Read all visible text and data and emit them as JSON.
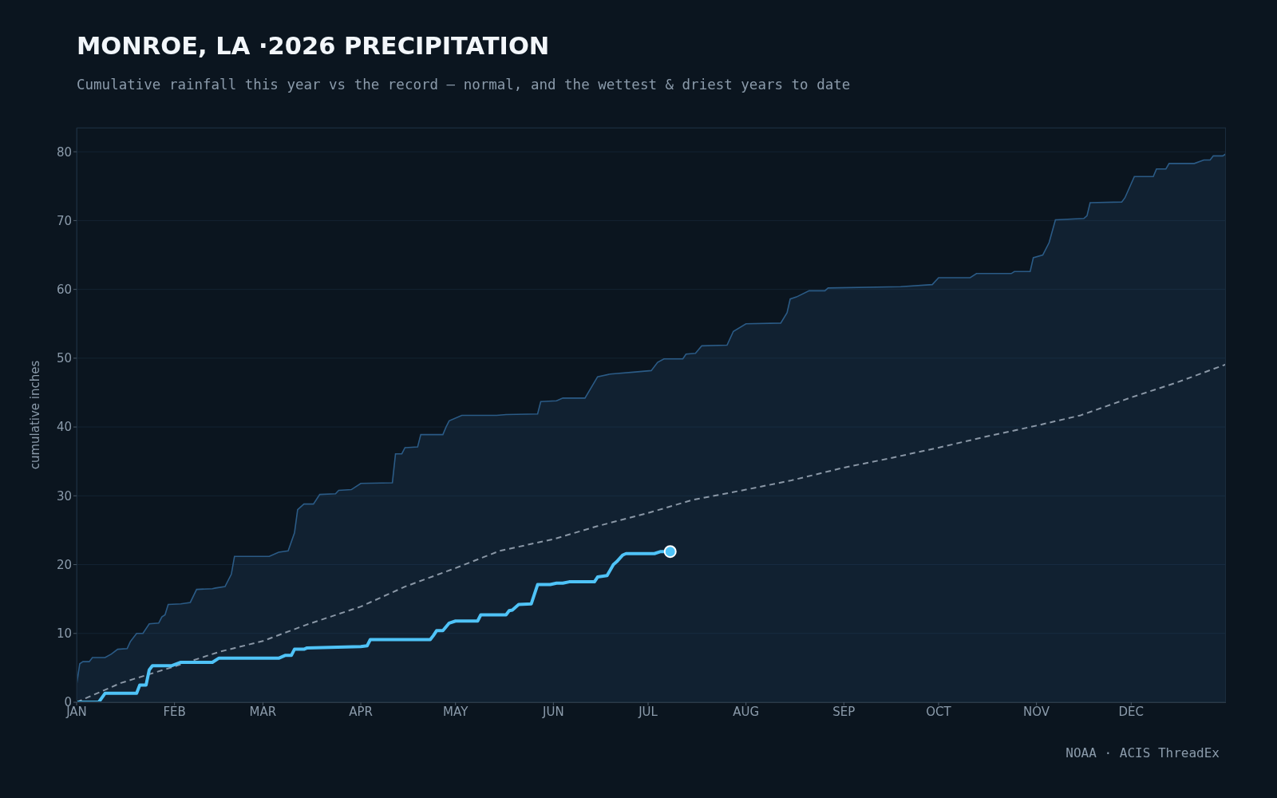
{
  "chart_data": {
    "type": "line",
    "title": "MONROE, LA ·2026 PRECIPITATION",
    "subtitle": "Cumulative rainfall this year vs the record — normal, and the wettest & driest years to date",
    "ylabel": "cumulative inches",
    "annotations": [
      "NOAA · ACIS ThreadEx"
    ],
    "xlim": [
      "--01-01",
      "--12-31"
    ],
    "xticks": [
      {
        "value": "--01-01",
        "label": "JAN"
      },
      {
        "value": "--02-01",
        "label": "FEB"
      },
      {
        "value": "--03-01",
        "label": "MAR"
      },
      {
        "value": "--04-01",
        "label": "APR"
      },
      {
        "value": "--05-01",
        "label": "MAY"
      },
      {
        "value": "--06-01",
        "label": "JUN"
      },
      {
        "value": "--07-01",
        "label": "JUL"
      },
      {
        "value": "--08-01",
        "label": "AUG"
      },
      {
        "value": "--09-01",
        "label": "SEP"
      },
      {
        "value": "--10-01",
        "label": "OCT"
      },
      {
        "value": "--11-01",
        "label": "NOV"
      },
      {
        "value": "--12-01",
        "label": "DEC"
      }
    ],
    "ylim": [
      0,
      83.5
    ],
    "yticks": [
      0,
      10,
      20,
      30,
      40,
      50,
      60,
      70,
      80
    ],
    "grid": "y",
    "series": [
      {
        "type": "area",
        "color": "#2b5b86",
        "x": [
          "--01-01",
          "--01-02",
          "--01-03",
          "--01-05",
          "--01-06",
          "--01-10",
          "--01-12",
          "--01-14",
          "--01-17",
          "--01-18",
          "--01-20",
          "--01-22",
          "--01-24",
          "--01-27",
          "--01-28",
          "--01-29",
          "--01-30",
          "--02-03",
          "--02-06",
          "--02-08",
          "--02-13",
          "--02-14",
          "--02-17",
          "--02-19",
          "--02-20",
          "--03-03",
          "--03-06",
          "--03-09",
          "--03-11",
          "--03-12",
          "--03-14",
          "--03-17",
          "--03-19",
          "--03-24",
          "--03-25",
          "--03-29",
          "--04-01",
          "--04-11",
          "--04-12",
          "--04-14",
          "--04-15",
          "--04-19",
          "--04-20",
          "--04-27",
          "--04-28",
          "--04-29",
          "--05-03",
          "--05-14",
          "--05-17",
          "--05-27",
          "--05-28",
          "--06-02",
          "--06-04",
          "--06-11",
          "--06-15",
          "--06-19",
          "--06-27",
          "--07-02",
          "--07-04",
          "--07-06",
          "--07-12",
          "--07-13",
          "--07-16",
          "--07-18",
          "--07-26",
          "--07-28",
          "--08-01",
          "--08-12",
          "--08-14",
          "--08-15",
          "--08-17",
          "--08-21",
          "--08-26",
          "--08-27",
          "--09-19",
          "--09-29",
          "--10-01",
          "--10-11",
          "--10-13",
          "--10-24",
          "--10-25",
          "--10-30",
          "--10-31",
          "--11-03",
          "--11-05",
          "--11-07",
          "--11-16",
          "--11-17",
          "--11-18",
          "--11-28",
          "--11-29",
          "--12-02",
          "--12-08",
          "--12-09",
          "--12-12",
          "--12-13",
          "--12-21",
          "--12-24",
          "--12-26",
          "--12-27",
          "--12-30",
          "--12-31"
        ],
        "values": [
          2.6,
          5.6,
          5.9,
          5.9,
          6.5,
          6.5,
          7.0,
          7.7,
          7.8,
          8.8,
          10.0,
          10.0,
          11.4,
          11.5,
          12.4,
          12.7,
          14.2,
          14.3,
          14.5,
          16.4,
          16.5,
          16.6,
          16.8,
          18.6,
          21.2,
          21.2,
          21.8,
          22.0,
          24.6,
          28.0,
          28.8,
          28.8,
          30.2,
          30.3,
          30.8,
          30.9,
          31.8,
          31.9,
          36.1,
          36.1,
          37.0,
          37.1,
          38.9,
          38.9,
          40.0,
          40.9,
          41.7,
          41.7,
          41.8,
          41.9,
          43.7,
          43.8,
          44.2,
          44.2,
          47.3,
          47.7,
          48.0,
          48.2,
          49.4,
          49.9,
          49.9,
          50.6,
          50.7,
          51.8,
          51.9,
          53.9,
          55.0,
          55.1,
          56.6,
          58.6,
          58.9,
          59.8,
          59.8,
          60.2,
          60.4,
          60.7,
          61.7,
          61.7,
          62.3,
          62.3,
          62.6,
          62.6,
          64.6,
          65.0,
          66.8,
          70.1,
          70.3,
          70.7,
          72.6,
          72.7,
          73.3,
          76.4,
          76.4,
          77.5,
          77.5,
          78.3,
          78.3,
          78.8,
          78.8,
          79.4,
          79.4,
          79.7
        ]
      },
      {
        "color": "#8a97a6",
        "line_style": "dashed",
        "x": [
          "--01-01",
          "--01-15",
          "--02-01",
          "--02-15",
          "--03-01",
          "--03-15",
          "--04-01",
          "--04-15",
          "--05-01",
          "--05-15",
          "--06-01",
          "--06-15",
          "--07-01",
          "--07-15",
          "--08-01",
          "--08-15",
          "--09-01",
          "--09-15",
          "--10-01",
          "--10-15",
          "--11-01",
          "--11-15",
          "--12-01",
          "--12-15",
          "--12-31"
        ],
        "values": [
          0,
          2.8,
          5.2,
          7.3,
          8.9,
          11.3,
          13.9,
          16.8,
          19.5,
          22.0,
          23.7,
          25.6,
          27.5,
          29.4,
          30.9,
          32.2,
          34.1,
          35.4,
          37.0,
          38.5,
          40.2,
          41.7,
          44.3,
          46.4,
          49.1
        ]
      },
      {
        "color": "#4fc3f7",
        "x": [
          "--01-01",
          "--01-08",
          "--01-10",
          "--01-20",
          "--01-21",
          "--01-23",
          "--01-24",
          "--01-25",
          "--01-31",
          "--02-03",
          "--02-13",
          "--02-15",
          "--03-06",
          "--03-08",
          "--03-10",
          "--03-11",
          "--03-14",
          "--03-15",
          "--04-01",
          "--04-03",
          "--04-04",
          "--04-23",
          "--04-24",
          "--04-25",
          "--04-27",
          "--04-29",
          "--05-01",
          "--05-08",
          "--05-09",
          "--05-17",
          "--05-18",
          "--05-19",
          "--05-21",
          "--05-25",
          "--05-27",
          "--05-31",
          "--06-02",
          "--06-04",
          "--06-06",
          "--06-14",
          "--06-15",
          "--06-18",
          "--06-20",
          "--06-21",
          "--06-23",
          "--06-24",
          "--07-03",
          "--07-05",
          "--07-08"
        ],
        "values": [
          0,
          0,
          1.3,
          1.3,
          2.5,
          2.5,
          4.7,
          5.3,
          5.3,
          5.8,
          5.8,
          6.4,
          6.4,
          6.8,
          6.8,
          7.7,
          7.7,
          7.9,
          8.1,
          8.2,
          9.1,
          9.1,
          9.7,
          10.4,
          10.4,
          11.5,
          11.8,
          11.8,
          12.7,
          12.7,
          13.3,
          13.4,
          14.2,
          14.3,
          17.1,
          17.1,
          17.3,
          17.3,
          17.5,
          17.5,
          18.2,
          18.4,
          20.0,
          20.4,
          21.4,
          21.6,
          21.6,
          21.9,
          21.9
        ]
      },
      {
        "type": "scatter",
        "color": "#4fc3f7",
        "marker": "circle",
        "x": [
          "--07-08"
        ],
        "values": [
          21.9
        ]
      }
    ]
  }
}
